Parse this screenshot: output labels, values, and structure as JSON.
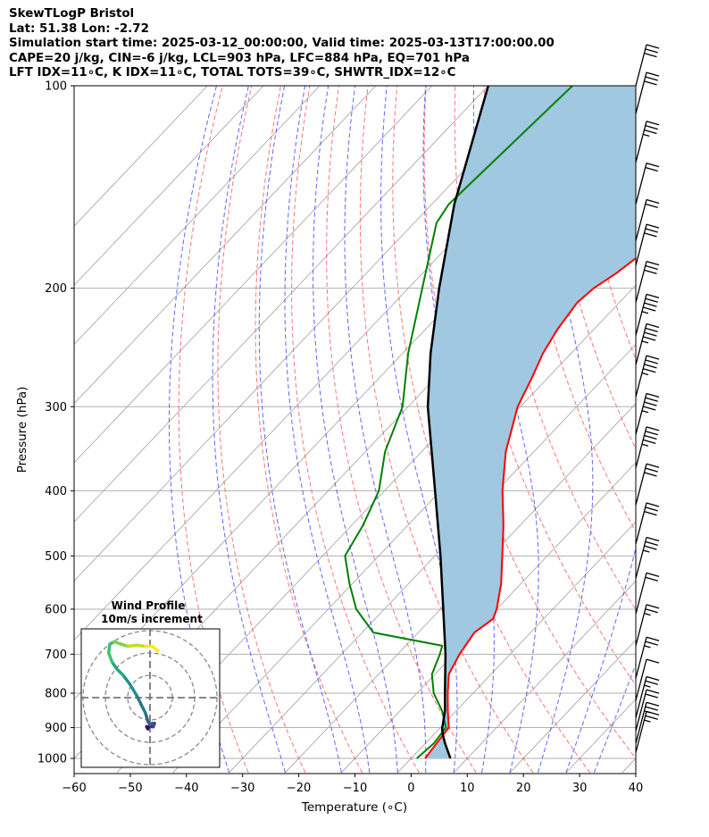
{
  "header": {
    "line1": "SkewTLogP Bristol",
    "line2": "Lat: 51.38   Lon: -2.72",
    "line3": "Simulation start time: 2025-03-12_00:00:00, Valid time: 2025-03-13T17:00:00.00",
    "line4": "CAPE=20 j/kg, CIN=-6 j/kg, LCL=903 hPa, LFC=884 hPa, EQ=701 hPa",
    "line5": "LFT IDX=11∘C, K IDX=11∘C, TOTAL TOTS=39∘C, SHWTR_IDX=12∘C"
  },
  "chart_data": {
    "type": "skewt",
    "xlabel": "Temperature (∘C)",
    "ylabel": "Pressure (hPa)",
    "xlim": [
      -60,
      40
    ],
    "ylim_pressure": [
      1050,
      100
    ],
    "x_ticks": [
      "−60",
      "−50",
      "−40",
      "−30",
      "−20",
      "−10",
      "0",
      "10",
      "20",
      "30",
      "40"
    ],
    "x_tick_values": [
      -60,
      -50,
      -40,
      -30,
      -20,
      -10,
      0,
      10,
      20,
      30,
      40
    ],
    "y_ticks": [
      "1000",
      "900",
      "800",
      "700",
      "600",
      "500",
      "400",
      "300",
      "200",
      "100"
    ],
    "y_tick_values": [
      1000,
      900,
      800,
      700,
      600,
      500,
      400,
      300,
      200,
      100
    ],
    "y_scale": "log",
    "grid": true,
    "colors": {
      "temperature": "#ff0000",
      "dewpoint": "#008000",
      "parcel": "#000000",
      "cape_fill": "#a0c8e0",
      "dry_adiabat": "#ff6a6a",
      "moist_adiabat": "#6a6aff",
      "isotherm": "#b0b0b0"
    },
    "temperature_profile": [
      {
        "p": 1000,
        "t": 2.5
      },
      {
        "p": 950,
        "t": 2.0
      },
      {
        "p": 900,
        "t": 1.5
      },
      {
        "p": 850,
        "t": -1.5
      },
      {
        "p": 800,
        "t": -4.5
      },
      {
        "p": 750,
        "t": -7.5
      },
      {
        "p": 700,
        "t": -9.0
      },
      {
        "p": 650,
        "t": -10.0
      },
      {
        "p": 620,
        "t": -9.0
      },
      {
        "p": 600,
        "t": -10.0
      },
      {
        "p": 550,
        "t": -13.5
      },
      {
        "p": 500,
        "t": -18.0
      },
      {
        "p": 450,
        "t": -23.0
      },
      {
        "p": 400,
        "t": -29.0
      },
      {
        "p": 350,
        "t": -35.0
      },
      {
        "p": 300,
        "t": -40.5
      },
      {
        "p": 270,
        "t": -43.0
      },
      {
        "p": 250,
        "t": -45.0
      },
      {
        "p": 230,
        "t": -46.5
      },
      {
        "p": 210,
        "t": -47.5
      },
      {
        "p": 200,
        "t": -47.0
      },
      {
        "p": 190,
        "t": -45.5
      },
      {
        "p": 180,
        "t": -44.5
      },
      {
        "p": 170,
        "t": -45.0
      },
      {
        "p": 160,
        "t": -46.5
      },
      {
        "p": 150,
        "t": -48.5
      },
      {
        "p": 140,
        "t": -50.0
      },
      {
        "p": 130,
        "t": -51.0
      },
      {
        "p": 120,
        "t": -53.0
      },
      {
        "p": 110,
        "t": -56.5
      },
      {
        "p": 100,
        "t": -60.0
      }
    ],
    "dewpoint_profile": [
      {
        "p": 1000,
        "t": 1.0
      },
      {
        "p": 950,
        "t": 1.5
      },
      {
        "p": 900,
        "t": 1.0
      },
      {
        "p": 850,
        "t": -2.5
      },
      {
        "p": 800,
        "t": -7.0
      },
      {
        "p": 750,
        "t": -10.5
      },
      {
        "p": 700,
        "t": -12.5
      },
      {
        "p": 680,
        "t": -13.5
      },
      {
        "p": 650,
        "t": -28.0
      },
      {
        "p": 600,
        "t": -35.0
      },
      {
        "p": 550,
        "t": -40.5
      },
      {
        "p": 500,
        "t": -46.0
      },
      {
        "p": 450,
        "t": -48.0
      },
      {
        "p": 400,
        "t": -51.0
      },
      {
        "p": 350,
        "t": -56.5
      },
      {
        "p": 300,
        "t": -61.0
      },
      {
        "p": 250,
        "t": -69.0
      },
      {
        "p": 200,
        "t": -77.5
      },
      {
        "p": 160,
        "t": -86.0
      },
      {
        "p": 150,
        "t": -87.0
      },
      {
        "p": 100,
        "t": -85.0
      }
    ],
    "parcel_profile": [
      {
        "p": 1000,
        "t": 7.0
      },
      {
        "p": 950,
        "t": 3.5
      },
      {
        "p": 920,
        "t": 1.5
      },
      {
        "p": 903,
        "t": 0.5
      },
      {
        "p": 850,
        "t": -2.0
      },
      {
        "p": 800,
        "t": -5.0
      },
      {
        "p": 700,
        "t": -11.5
      },
      {
        "p": 600,
        "t": -19.5
      },
      {
        "p": 500,
        "t": -29.0
      },
      {
        "p": 400,
        "t": -41.0
      },
      {
        "p": 300,
        "t": -56.5
      },
      {
        "p": 250,
        "t": -65.0
      },
      {
        "p": 200,
        "t": -74.5
      },
      {
        "p": 150,
        "t": -86.0
      },
      {
        "p": 100,
        "t": -100.0
      }
    ],
    "wind_barbs": [
      {
        "p": 100,
        "speed_kt": 30
      },
      {
        "p": 110,
        "speed_kt": 30
      },
      {
        "p": 130,
        "speed_kt": 25
      },
      {
        "p": 150,
        "speed_kt": 20
      },
      {
        "p": 170,
        "speed_kt": 20
      },
      {
        "p": 185,
        "speed_kt": 30
      },
      {
        "p": 210,
        "speed_kt": 30
      },
      {
        "p": 235,
        "speed_kt": 35
      },
      {
        "p": 260,
        "speed_kt": 35
      },
      {
        "p": 290,
        "speed_kt": 35
      },
      {
        "p": 330,
        "speed_kt": 35
      },
      {
        "p": 370,
        "speed_kt": 35
      },
      {
        "p": 420,
        "speed_kt": 30
      },
      {
        "p": 480,
        "speed_kt": 30
      },
      {
        "p": 540,
        "speed_kt": 25
      },
      {
        "p": 610,
        "speed_kt": 20
      },
      {
        "p": 680,
        "speed_kt": 15
      },
      {
        "p": 760,
        "speed_kt": 15
      },
      {
        "p": 820,
        "speed_kt": 10
      },
      {
        "p": 870,
        "speed_kt": 15
      },
      {
        "p": 910,
        "speed_kt": 20
      },
      {
        "p": 950,
        "speed_kt": 15
      },
      {
        "p": 980,
        "speed_kt": 15
      }
    ],
    "inset": {
      "title_line1": "Wind Profile",
      "title_line2": "10m/s increment",
      "hodograph_u": [
        -1,
        -1.5,
        -1,
        0,
        1,
        1.5,
        2,
        1,
        0,
        -1,
        -2,
        -4,
        -6,
        -9,
        -12,
        -15,
        -17,
        -18.5,
        -18,
        -16,
        -13,
        -10,
        -6,
        -2,
        1,
        3.5
      ],
      "hodograph_v": [
        14,
        13,
        13.5,
        12.5,
        13,
        13,
        11.5,
        11.5,
        12,
        10.5,
        7,
        3,
        -1,
        -6,
        -10,
        -13,
        -16,
        -20,
        -24,
        -25,
        -24,
        -23,
        -23.5,
        -23,
        -23,
        -21
      ]
    }
  }
}
